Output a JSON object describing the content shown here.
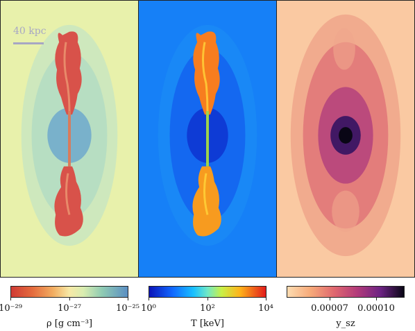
{
  "panels": {
    "density": {
      "name": "density-panel"
    },
    "temperature": {
      "name": "temperature-panel"
    },
    "sz": {
      "name": "sz-panel"
    }
  },
  "scale_bar": {
    "label": "40 kpc"
  },
  "colorbars": [
    {
      "label": "ρ [g cm⁻³]",
      "ticks": [
        "10⁻²⁹",
        "10⁻²⁷",
        "10⁻²⁵"
      ],
      "colormap": [
        "#cf3b35",
        "#f7e9a6",
        "#5b8fc3"
      ]
    },
    {
      "label": "T [keV]",
      "ticks": [
        "10⁰",
        "10²",
        "10⁴"
      ],
      "colormap": [
        "#0b14b8",
        "#19c0ff",
        "#c8f047",
        "#e21b1b"
      ]
    },
    {
      "label": "y_sz",
      "ticks": [
        "0.00007",
        "0.00010"
      ],
      "colormap": [
        "#fddcb1",
        "#e0686f",
        "#6c2383",
        "#090615"
      ]
    }
  ]
}
